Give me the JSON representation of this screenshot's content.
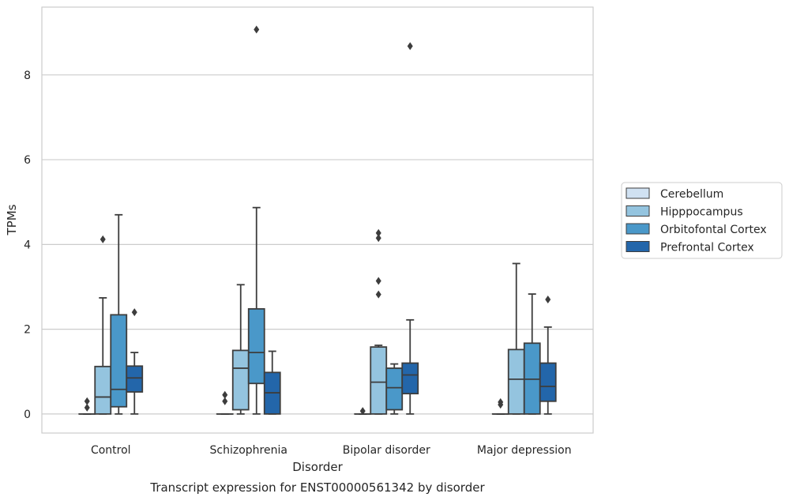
{
  "chart_data": {
    "type": "box",
    "title": "Transcript expression for ENST00000561342 by disorder",
    "xlabel": "Disorder",
    "ylabel": "TPMs",
    "ylim": [
      -0.45,
      9.6
    ],
    "yticks": [
      0,
      2,
      4,
      6,
      8
    ],
    "grid": "horizontal",
    "legend_position": "right",
    "categories": [
      "Control",
      "Schizophrenia",
      "Bipolar disorder",
      "Major depression"
    ],
    "series": [
      {
        "name": "Cerebellum",
        "color": "#d0e1f2",
        "boxes": [
          {
            "whislo": 0,
            "q1": 0,
            "med": 0,
            "q3": 0,
            "whishi": 0,
            "fliers": [
              0.3,
              0.15
            ]
          },
          {
            "whislo": 0,
            "q1": 0,
            "med": 0,
            "q3": 0,
            "whishi": 0,
            "fliers": [
              0.45,
              0.3
            ]
          },
          {
            "whislo": 0,
            "q1": 0,
            "med": 0,
            "q3": 0,
            "whishi": 0,
            "fliers": [
              0.07
            ]
          },
          {
            "whislo": 0,
            "q1": 0,
            "med": 0,
            "q3": 0,
            "whishi": 0,
            "fliers": [
              0.28,
              0.22
            ]
          }
        ]
      },
      {
        "name": "Hipppocampus",
        "color": "#94c4df",
        "boxes": [
          {
            "whislo": 0,
            "q1": 0,
            "med": 0.4,
            "q3": 1.12,
            "whishi": 2.74,
            "fliers": [
              4.12
            ]
          },
          {
            "whislo": 0,
            "q1": 0.1,
            "med": 1.08,
            "q3": 1.5,
            "whishi": 3.05,
            "fliers": []
          },
          {
            "whislo": 0,
            "q1": 0,
            "med": 0.75,
            "q3": 1.58,
            "whishi": 1.62,
            "fliers": [
              4.27,
              4.15,
              3.14,
              2.82
            ]
          },
          {
            "whislo": 0,
            "q1": 0,
            "med": 0.82,
            "q3": 1.52,
            "whishi": 3.55,
            "fliers": []
          }
        ]
      },
      {
        "name": "Orbitofontal Cortex",
        "color": "#4a98c9",
        "boxes": [
          {
            "whislo": 0,
            "q1": 0.17,
            "med": 0.58,
            "q3": 2.34,
            "whishi": 4.7,
            "fliers": []
          },
          {
            "whislo": 0,
            "q1": 0.72,
            "med": 1.45,
            "q3": 2.48,
            "whishi": 4.87,
            "fliers": [
              9.07
            ]
          },
          {
            "whislo": 0,
            "q1": 0.1,
            "med": 0.62,
            "q3": 1.08,
            "whishi": 1.18,
            "fliers": []
          },
          {
            "whislo": 0,
            "q1": 0,
            "med": 0.82,
            "q3": 1.67,
            "whishi": 2.83,
            "fliers": []
          }
        ]
      },
      {
        "name": "Prefrontal Cortex",
        "color": "#2366aa",
        "boxes": [
          {
            "whislo": 0,
            "q1": 0.52,
            "med": 0.85,
            "q3": 1.13,
            "whishi": 1.45,
            "fliers": [
              2.4
            ]
          },
          {
            "whislo": 0,
            "q1": 0,
            "med": 0.5,
            "q3": 0.98,
            "whishi": 1.48,
            "fliers": []
          },
          {
            "whislo": 0,
            "q1": 0.48,
            "med": 0.92,
            "q3": 1.2,
            "whishi": 2.22,
            "fliers": [
              8.68
            ]
          },
          {
            "whislo": 0,
            "q1": 0.3,
            "med": 0.65,
            "q3": 1.2,
            "whishi": 2.05,
            "fliers": [
              2.7
            ]
          }
        ]
      }
    ]
  },
  "colors": {
    "grid": "#cccccc",
    "frame": "#cccccc",
    "lines": "#3d3d3d",
    "text": "#262626"
  }
}
